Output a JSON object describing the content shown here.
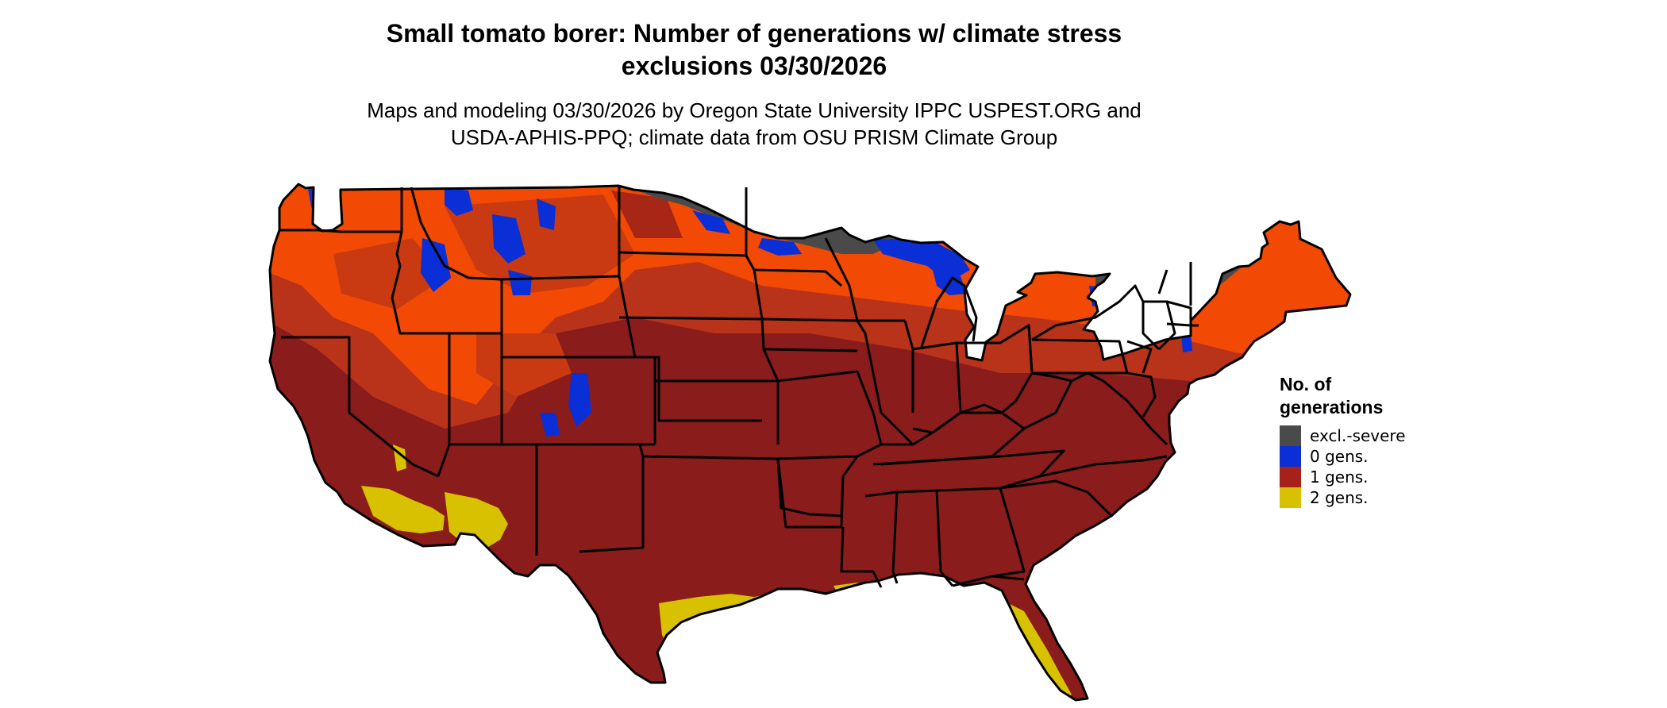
{
  "title": {
    "line1": "Small tomato borer: Number of generations w/ climate stress",
    "line2": "exclusions 03/30/2026"
  },
  "subtitle": {
    "line1": "Maps and modeling 03/30/2026 by Oregon State University IPPC USPEST.ORG and",
    "line2": "USDA-APHIS-PPQ; climate data from OSU PRISM Climate Group"
  },
  "legend": {
    "title_line1": "No. of",
    "title_line2": "generations",
    "items": [
      {
        "label": "excl.-severe",
        "color": "#4a4a4a"
      },
      {
        "label": "0 gens.",
        "color": "#0a2fd6"
      },
      {
        "label": "1 gens.",
        "color": "#a5211a"
      },
      {
        "label": "2 gens.",
        "color": "#d7c100"
      }
    ]
  },
  "map_colors": {
    "excl_severe": "#4a4a4a",
    "zero_gens": "#0a2fd6",
    "one_gen_dark": "#8b1c1c",
    "one_gen_mid": "#b8331a",
    "one_gen_light": "#f24a05",
    "two_gens": "#d7c100",
    "state_border": "#000000"
  }
}
